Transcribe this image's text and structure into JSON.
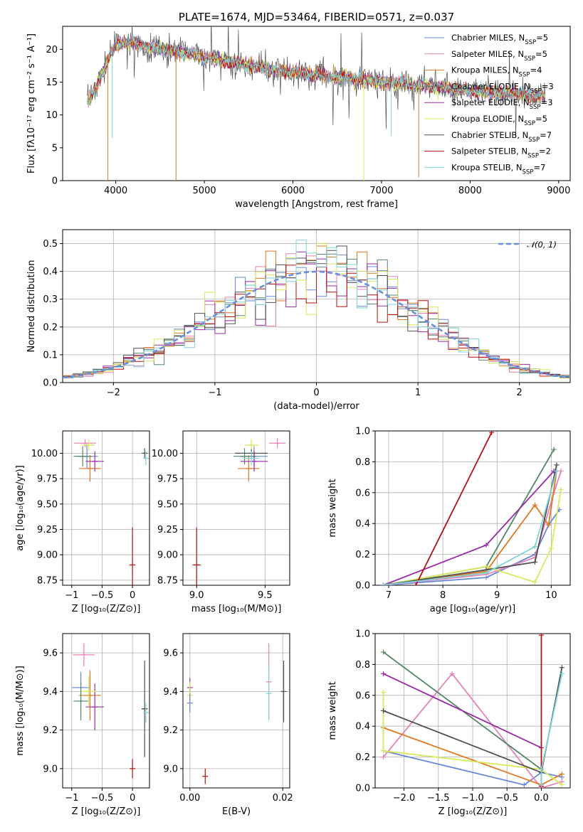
{
  "colors": {
    "chabrier_miles": "#6788d8",
    "salpeter_miles": "#e682b8",
    "kroupa_miles": "#e07820",
    "chabrier_elodie": "#558866",
    "salpeter_elodie": "#9a2aa8",
    "kroupa_elodie": "#d8e858",
    "chabrier_stelib": "#505050",
    "salpeter_stelib": "#b80f0f",
    "kroupa_stelib": "#7fd4d6"
  },
  "chart_data": [
    {
      "id": "spectrum",
      "type": "line",
      "title": "PLATE=1674, MJD=53464, FIBERID=0571, z=0.037",
      "xlabel": "wavelength [Angstrom, rest frame]",
      "ylabel": "Flux [fλ10⁻¹⁷ erg cm⁻² s⁻¹ A⁻¹]",
      "xlim": [
        3400,
        9130
      ],
      "ylim": [
        0,
        23.5
      ],
      "xticks": [
        4000,
        5000,
        6000,
        7000,
        8000,
        9000
      ],
      "yticks": [
        0,
        5,
        10,
        15,
        20
      ],
      "grid": false,
      "legend_position": "top-right",
      "legend": [
        {
          "label": "Chabrier MILES, N",
          "sub": "SSP",
          "value": "=5",
          "color_key": "chabrier_miles"
        },
        {
          "label": "Salpeter MILES, N",
          "sub": "SSP",
          "value": "=5",
          "color_key": "salpeter_miles"
        },
        {
          "label": "Kroupa MILES, N",
          "sub": "SSP",
          "value": "=4",
          "color_key": "kroupa_miles"
        },
        {
          "label": "Chabrier ELODIE, N",
          "sub": "SSP",
          "value": "=3",
          "color_key": "chabrier_elodie"
        },
        {
          "label": "Salpeter ELODIE, N",
          "sub": "SSP",
          "value": "=3",
          "color_key": "salpeter_elodie"
        },
        {
          "label": "Kroupa ELODIE, N",
          "sub": "SSP",
          "value": "=5",
          "color_key": "kroupa_elodie"
        },
        {
          "label": "Chabrier STELIB, N",
          "sub": "SSP",
          "value": "=7",
          "color_key": "chabrier_stelib"
        },
        {
          "label": "Salpeter STELIB, N",
          "sub": "SSP",
          "value": "=2",
          "color_key": "salpeter_stelib"
        },
        {
          "label": "Kroupa STELIB, N",
          "sub": "SSP",
          "value": "=7",
          "color_key": "kroupa_stelib"
        }
      ],
      "continuum": {
        "x": [
          3680,
          3750,
          3850,
          3950,
          4050,
          4200,
          4400,
          4600,
          4800,
          5000,
          5200,
          5400,
          5600,
          5800,
          6000,
          6200,
          6400,
          6600,
          6800,
          7000,
          7200,
          7400,
          7600,
          7800,
          8000,
          8200,
          8400,
          8600,
          8850
        ],
        "y": [
          12.0,
          13.5,
          16.5,
          19.5,
          21.0,
          21.0,
          20.2,
          19.8,
          19.5,
          18.8,
          18.2,
          17.8,
          17.3,
          16.8,
          16.5,
          16.2,
          15.9,
          15.6,
          15.3,
          15.0,
          14.8,
          14.5,
          14.3,
          14.0,
          13.7,
          13.5,
          13.3,
          13.1,
          12.8
        ]
      },
      "dips": [
        {
          "x": 3910,
          "y": 0,
          "color_key": "kroupa_miles"
        },
        {
          "x": 4680,
          "y": 0,
          "color_key": "kroupa_miles"
        },
        {
          "x": 6800,
          "y": 0,
          "color_key": "kroupa_elodie"
        },
        {
          "x": 7420,
          "y": 0.5,
          "color_key": "kroupa_miles"
        },
        {
          "x": 7110,
          "y": 6.8,
          "color_key": "kroupa_stelib"
        },
        {
          "x": 3960,
          "y": 6.5,
          "color_key": "kroupa_stelib"
        }
      ]
    },
    {
      "id": "residuals",
      "type": "area",
      "xlabel": "(data-model)/error",
      "ylabel": "Normed distribution",
      "xlim": [
        -2.5,
        2.5
      ],
      "ylim": [
        0,
        0.55
      ],
      "xticks": [
        -2,
        -1,
        0,
        1,
        2
      ],
      "yticks": [
        0.0,
        0.1,
        0.2,
        0.3,
        0.4,
        0.5
      ],
      "grid": true,
      "legend_position": "top-right",
      "legend": [
        {
          "label": "𝒩(0, 1)",
          "color": "#6a8fdc"
        }
      ],
      "bin_width": 0.1,
      "bins_start": -2.5,
      "reference_curve": "normal(0,1)"
    },
    {
      "id": "z-vs-age",
      "type": "scatter",
      "xlabel": "Z [log₁₀(Z/Z⊙)]",
      "ylabel": "age  [log₁₀(age/yr)]",
      "xlim": [
        -1.15,
        0.28
      ],
      "ylim": [
        8.7,
        10.22
      ],
      "xticks": [
        -1,
        -0.5,
        0
      ],
      "yticks": [
        8.75,
        9.0,
        9.25,
        9.5,
        9.75,
        10.0
      ],
      "grid": true,
      "points": [
        {
          "x": -0.75,
          "y": 9.97,
          "xerr": 0.18,
          "yerr": 0.12,
          "color_key": "chabrier_miles"
        },
        {
          "x": -0.78,
          "y": 10.1,
          "xerr": 0.18,
          "yerr": 0.04,
          "color_key": "salpeter_miles"
        },
        {
          "x": -0.7,
          "y": 9.85,
          "xerr": 0.18,
          "yerr": 0.13,
          "color_key": "kroupa_miles"
        },
        {
          "x": -0.82,
          "y": 9.97,
          "xerr": 0.15,
          "yerr": 0.1,
          "color_key": "chabrier_elodie"
        },
        {
          "x": -0.62,
          "y": 9.92,
          "xerr": 0.15,
          "yerr": 0.1,
          "color_key": "salpeter_elodie"
        },
        {
          "x": -0.72,
          "y": 10.08,
          "xerr": 0.1,
          "yerr": 0.06,
          "color_key": "kroupa_elodie"
        },
        {
          "x": 0.2,
          "y": 10.0,
          "xerr": 0.05,
          "yerr": 0.05,
          "color_key": "chabrier_stelib"
        },
        {
          "x": 0.0,
          "y": 8.9,
          "xerr": 0.01,
          "yerr": 0.37,
          "color_key": "salpeter_stelib"
        },
        {
          "x": 0.22,
          "y": 9.95,
          "xerr": 0.04,
          "yerr": 0.07,
          "color_key": "kroupa_stelib"
        }
      ]
    },
    {
      "id": "mass-vs-age",
      "type": "scatter",
      "xlabel": "mass [log₁₀(M/M⊙)]",
      "ylabel": "",
      "xlim": [
        8.9,
        9.68
      ],
      "ylim": [
        8.7,
        10.22
      ],
      "xticks": [
        9.0,
        9.5
      ],
      "yticks": [
        8.75,
        9.0,
        9.25,
        9.5,
        9.75,
        10.0
      ],
      "grid": true,
      "points": [
        {
          "x": 9.42,
          "y": 9.97,
          "xerr": 0.1,
          "yerr": 0.1,
          "color_key": "chabrier_miles"
        },
        {
          "x": 9.59,
          "y": 10.1,
          "xerr": 0.06,
          "yerr": 0.05,
          "color_key": "salpeter_miles"
        },
        {
          "x": 9.38,
          "y": 9.85,
          "xerr": 0.08,
          "yerr": 0.13,
          "color_key": "kroupa_miles"
        },
        {
          "x": 9.35,
          "y": 9.97,
          "xerr": 0.08,
          "yerr": 0.08,
          "color_key": "chabrier_elodie"
        },
        {
          "x": 9.42,
          "y": 9.92,
          "xerr": 0.1,
          "yerr": 0.1,
          "color_key": "salpeter_elodie"
        },
        {
          "x": 9.4,
          "y": 10.08,
          "xerr": 0.05,
          "yerr": 0.06,
          "color_key": "kroupa_elodie"
        },
        {
          "x": 9.4,
          "y": 10.0,
          "xerr": 0.12,
          "yerr": 0.04,
          "color_key": "chabrier_stelib"
        },
        {
          "x": 9.0,
          "y": 8.9,
          "xerr": 0.03,
          "yerr": 0.37,
          "color_key": "salpeter_stelib"
        },
        {
          "x": 9.4,
          "y": 9.95,
          "xerr": 0.06,
          "yerr": 0.07,
          "color_key": "kroupa_stelib"
        }
      ]
    },
    {
      "id": "age-vs-weight",
      "type": "line",
      "xlabel": "age  [log₁₀(age/yr)]",
      "ylabel": "mass weight",
      "xlim": [
        6.75,
        10.35
      ],
      "ylim": [
        0,
        1
      ],
      "xticks": [
        7,
        8,
        9,
        10
      ],
      "yticks": [
        0.0,
        0.2,
        0.4,
        0.6,
        0.8,
        1.0
      ],
      "grid": true,
      "series": [
        {
          "color_key": "chabrier_miles",
          "x": [
            6.9,
            8.8,
            9.7,
            9.95,
            10.15
          ],
          "y": [
            0.0,
            0.05,
            0.2,
            0.39,
            0.49
          ]
        },
        {
          "color_key": "salpeter_miles",
          "x": [
            6.9,
            8.8,
            9.7,
            10.05,
            10.18
          ],
          "y": [
            0.0,
            0.07,
            0.18,
            0.6,
            0.74
          ]
        },
        {
          "color_key": "kroupa_miles",
          "x": [
            6.9,
            8.8,
            9.7,
            9.95,
            10.1
          ],
          "y": [
            0.0,
            0.09,
            0.52,
            0.39,
            0.74
          ]
        },
        {
          "color_key": "chabrier_elodie",
          "x": [
            6.9,
            8.8,
            10.05
          ],
          "y": [
            0.0,
            0.12,
            0.88
          ]
        },
        {
          "color_key": "salpeter_elodie",
          "x": [
            6.9,
            8.8,
            10.05
          ],
          "y": [
            0.0,
            0.26,
            0.74
          ]
        },
        {
          "color_key": "kroupa_elodie",
          "x": [
            6.9,
            8.8,
            9.7,
            10.0,
            10.18
          ],
          "y": [
            0.0,
            0.12,
            0.02,
            0.24,
            0.62
          ]
        },
        {
          "color_key": "chabrier_stelib",
          "x": [
            6.9,
            8.8,
            9.7,
            10.1
          ],
          "y": [
            0.0,
            0.1,
            0.15,
            0.78
          ]
        },
        {
          "color_key": "salpeter_stelib",
          "x": [
            7.5,
            8.9
          ],
          "y": [
            0.0,
            0.99
          ]
        },
        {
          "color_key": "kroupa_stelib",
          "x": [
            6.9,
            8.8,
            9.7,
            10.1
          ],
          "y": [
            0.0,
            0.08,
            0.25,
            0.74
          ]
        }
      ]
    },
    {
      "id": "z-vs-mass",
      "type": "scatter",
      "xlabel": "Z [log₁₀(Z/Z⊙)]",
      "ylabel": "mass [log₁₀(M/M⊙)]",
      "xlim": [
        -1.15,
        0.28
      ],
      "ylim": [
        8.9,
        9.7
      ],
      "xticks": [
        -1,
        -0.5,
        0
      ],
      "yticks": [
        9.0,
        9.2,
        9.4,
        9.6
      ],
      "grid": true,
      "points": [
        {
          "x": -0.85,
          "y": 9.42,
          "xerr": 0.15,
          "yerr": 0.08,
          "color_key": "chabrier_miles"
        },
        {
          "x": -0.8,
          "y": 9.59,
          "xerr": 0.18,
          "yerr": 0.06,
          "color_key": "salpeter_miles"
        },
        {
          "x": -0.7,
          "y": 9.38,
          "xerr": 0.18,
          "yerr": 0.13,
          "color_key": "kroupa_miles"
        },
        {
          "x": -0.85,
          "y": 9.35,
          "xerr": 0.12,
          "yerr": 0.1,
          "color_key": "chabrier_elodie"
        },
        {
          "x": -0.62,
          "y": 9.32,
          "xerr": 0.15,
          "yerr": 0.12,
          "color_key": "salpeter_elodie"
        },
        {
          "x": -0.72,
          "y": 9.4,
          "xerr": 0.12,
          "yerr": 0.08,
          "color_key": "kroupa_elodie"
        },
        {
          "x": 0.2,
          "y": 9.31,
          "xerr": 0.05,
          "yerr": 0.25,
          "color_key": "chabrier_stelib"
        },
        {
          "x": 0.0,
          "y": 9.0,
          "xerr": 0.01,
          "yerr": 0.05,
          "color_key": "salpeter_stelib"
        },
        {
          "x": 0.22,
          "y": 9.29,
          "xerr": 0.04,
          "yerr": 0.05,
          "color_key": "kroupa_stelib"
        }
      ]
    },
    {
      "id": "ebv-vs-mass",
      "type": "scatter",
      "xlabel": "E(B-V)",
      "ylabel": "",
      "xlim": [
        -0.0015,
        0.0215
      ],
      "ylim": [
        8.9,
        9.7
      ],
      "xticks": [
        0.0,
        0.02
      ],
      "yticks": [
        9.0,
        9.2,
        9.4,
        9.6
      ],
      "grid": true,
      "points": [
        {
          "x": 0.0,
          "y": 9.42,
          "xerr": 0,
          "yerr": 0.05,
          "color_key": "salpeter_elodie"
        },
        {
          "x": 0.0,
          "y": 9.38,
          "xerr": 0,
          "yerr": 0.07,
          "color_key": "kroupa_elodie"
        },
        {
          "x": 0.0,
          "y": 9.34,
          "xerr": 0,
          "yerr": 0.05,
          "color_key": "chabrier_miles"
        },
        {
          "x": 0.0033,
          "y": 8.96,
          "xerr": 0,
          "yerr": 0.04,
          "color_key": "salpeter_stelib"
        },
        {
          "x": 0.017,
          "y": 9.45,
          "xerr": 0,
          "yerr": 0.2,
          "color_key": "salpeter_miles"
        },
        {
          "x": 0.017,
          "y": 9.39,
          "xerr": 0,
          "yerr": 0.14,
          "color_key": "kroupa_stelib"
        },
        {
          "x": 0.0202,
          "y": 9.4,
          "xerr": 0,
          "yerr": 0.16,
          "color_key": "chabrier_stelib"
        }
      ]
    },
    {
      "id": "z-vs-weight",
      "type": "line",
      "xlabel": "Z [log₁₀(Z/Z⊙)]",
      "ylabel": "mass weight",
      "xlim": [
        -2.42,
        0.42
      ],
      "ylim": [
        0,
        1
      ],
      "xticks": [
        -2.0,
        -1.5,
        -1.0,
        -0.5,
        0.0
      ],
      "yticks": [
        0.0,
        0.2,
        0.4,
        0.6,
        0.8,
        1.0
      ],
      "grid": true,
      "series": [
        {
          "color_key": "chabrier_miles",
          "x": [
            -2.3,
            -0.25,
            0.0,
            0.3
          ],
          "y": [
            0.24,
            0.02,
            0.1,
            0.07
          ]
        },
        {
          "color_key": "salpeter_miles",
          "x": [
            -2.3,
            -1.3,
            0.0,
            0.3
          ],
          "y": [
            0.2,
            0.74,
            0.0,
            0.04
          ]
        },
        {
          "color_key": "kroupa_miles",
          "x": [
            -2.3,
            0.0,
            0.3
          ],
          "y": [
            0.39,
            0.02,
            0.09
          ]
        },
        {
          "color_key": "chabrier_elodie",
          "x": [
            -2.3,
            0.0
          ],
          "y": [
            0.88,
            0.12
          ]
        },
        {
          "color_key": "salpeter_elodie",
          "x": [
            -2.3,
            0.0
          ],
          "y": [
            0.74,
            0.26
          ]
        },
        {
          "color_key": "kroupa_elodie",
          "x": [
            -2.3,
            -2.3,
            0.0,
            0.3
          ],
          "y": [
            0.62,
            0.24,
            0.12,
            0.02
          ]
        },
        {
          "color_key": "chabrier_stelib",
          "x": [
            -2.3,
            0.0,
            0.3
          ],
          "y": [
            0.5,
            0.1,
            0.78
          ]
        },
        {
          "color_key": "salpeter_stelib",
          "x": [
            0.0,
            0.0
          ],
          "y": [
            0.01,
            0.99
          ]
        },
        {
          "color_key": "kroupa_stelib",
          "x": [
            0.0,
            0.0,
            0.3
          ],
          "y": [
            0.02,
            0.12,
            0.74
          ]
        }
      ]
    }
  ]
}
